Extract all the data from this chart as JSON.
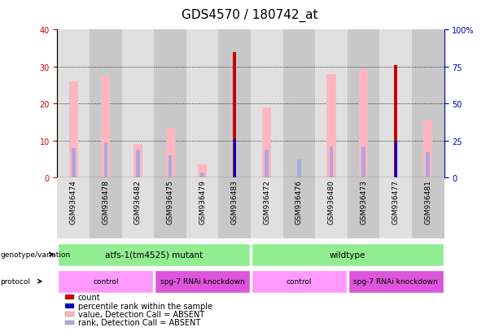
{
  "title": "GDS4570 / 180742_at",
  "samples": [
    "GSM936474",
    "GSM936478",
    "GSM936482",
    "GSM936475",
    "GSM936479",
    "GSM936483",
    "GSM936472",
    "GSM936476",
    "GSM936480",
    "GSM936473",
    "GSM936477",
    "GSM936481"
  ],
  "count_values": [
    null,
    null,
    null,
    null,
    null,
    34.0,
    null,
    null,
    null,
    null,
    30.5,
    null
  ],
  "percentile_rank": [
    null,
    null,
    null,
    null,
    null,
    10.5,
    null,
    null,
    null,
    null,
    10.0,
    null
  ],
  "pink_value": [
    26.0,
    27.5,
    9.0,
    13.5,
    3.5,
    null,
    19.0,
    null,
    28.0,
    29.0,
    null,
    15.5
  ],
  "blue_rank": [
    8.0,
    9.5,
    7.5,
    6.0,
    1.5,
    null,
    7.5,
    5.0,
    8.5,
    8.5,
    null,
    7.0
  ],
  "col_colors": [
    "#E0E0E0",
    "#C8C8C8",
    "#E0E0E0",
    "#C8C8C8",
    "#E0E0E0",
    "#C8C8C8",
    "#E0E0E0",
    "#C8C8C8",
    "#E0E0E0",
    "#C8C8C8",
    "#E0E0E0",
    "#C8C8C8"
  ],
  "genotype_groups": [
    {
      "label": "atfs-1(tm4525) mutant",
      "start": 0,
      "end": 6,
      "color": "#90EE90"
    },
    {
      "label": "wildtype",
      "start": 6,
      "end": 12,
      "color": "#90EE90"
    }
  ],
  "protocol_groups": [
    {
      "label": "control",
      "start": 0,
      "end": 3,
      "color": "#FF99FF"
    },
    {
      "label": "spg-7 RNAi knockdown",
      "start": 3,
      "end": 6,
      "color": "#DD55DD"
    },
    {
      "label": "control",
      "start": 6,
      "end": 9,
      "color": "#FF99FF"
    },
    {
      "label": "spg-7 RNAi knockdown",
      "start": 9,
      "end": 12,
      "color": "#DD55DD"
    }
  ],
  "ylim_left": [
    0,
    40
  ],
  "ylim_right": [
    0,
    100
  ],
  "yticks_left": [
    0,
    10,
    20,
    30,
    40
  ],
  "yticks_right": [
    0,
    25,
    50,
    75,
    100
  ],
  "yticklabels_right": [
    "0",
    "25",
    "50",
    "75",
    "100%"
  ],
  "grid_lines": [
    10,
    20,
    30
  ],
  "bar_color_count": "#CC0000",
  "bar_color_rank": "#0000CC",
  "bar_color_pink": "#FFB6C1",
  "bar_color_blue_rank": "#AAAADD",
  "legend_items": [
    {
      "color": "#CC0000",
      "label": "count"
    },
    {
      "color": "#0000CC",
      "label": "percentile rank within the sample"
    },
    {
      "color": "#FFB6C1",
      "label": "value, Detection Call = ABSENT"
    },
    {
      "color": "#AAAADD",
      "label": "rank, Detection Call = ABSENT"
    }
  ],
  "left_axis_color": "#CC0000",
  "right_axis_color": "#0000AA",
  "title_fontsize": 11,
  "tick_fontsize": 7,
  "background_color": "#FFFFFF"
}
